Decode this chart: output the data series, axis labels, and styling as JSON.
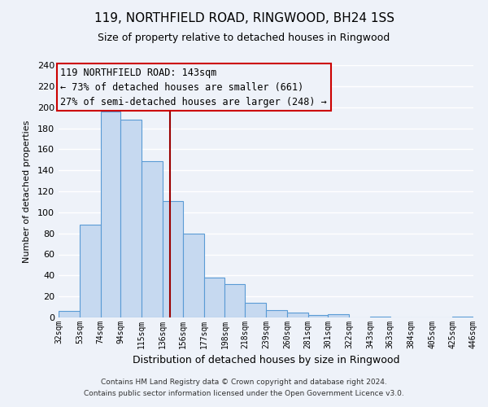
{
  "title": "119, NORTHFIELD ROAD, RINGWOOD, BH24 1SS",
  "subtitle": "Size of property relative to detached houses in Ringwood",
  "xlabel": "Distribution of detached houses by size in Ringwood",
  "ylabel": "Number of detached properties",
  "bin_edges": [
    32,
    53,
    74,
    94,
    115,
    136,
    156,
    177,
    198,
    218,
    239,
    260,
    281,
    301,
    322,
    343,
    363,
    384,
    405,
    425,
    446
  ],
  "bin_labels": [
    "32sqm",
    "53sqm",
    "74sqm",
    "94sqm",
    "115sqm",
    "136sqm",
    "156sqm",
    "177sqm",
    "198sqm",
    "218sqm",
    "239sqm",
    "260sqm",
    "281sqm",
    "301sqm",
    "322sqm",
    "343sqm",
    "363sqm",
    "384sqm",
    "405sqm",
    "425sqm",
    "446sqm"
  ],
  "counts": [
    6,
    88,
    196,
    188,
    149,
    111,
    80,
    38,
    32,
    14,
    7,
    5,
    2,
    3,
    0,
    1,
    0,
    0,
    0,
    1
  ],
  "bar_color": "#c6d9f0",
  "bar_edge_color": "#5a9bd5",
  "property_value": 143,
  "property_label": "119 NORTHFIELD ROAD: 143sqm",
  "line_color": "#9b0000",
  "annotation_line1": "← 73% of detached houses are smaller (661)",
  "annotation_line2": "27% of semi-detached houses are larger (248) →",
  "box_edge_color": "#cc0000",
  "ylim": [
    0,
    240
  ],
  "yticks": [
    0,
    20,
    40,
    60,
    80,
    100,
    120,
    140,
    160,
    180,
    200,
    220,
    240
  ],
  "footer_line1": "Contains HM Land Registry data © Crown copyright and database right 2024.",
  "footer_line2": "Contains public sector information licensed under the Open Government Licence v3.0.",
  "bg_color": "#eef2f9",
  "grid_color": "#ffffff",
  "title_fontsize": 11,
  "subtitle_fontsize": 9
}
